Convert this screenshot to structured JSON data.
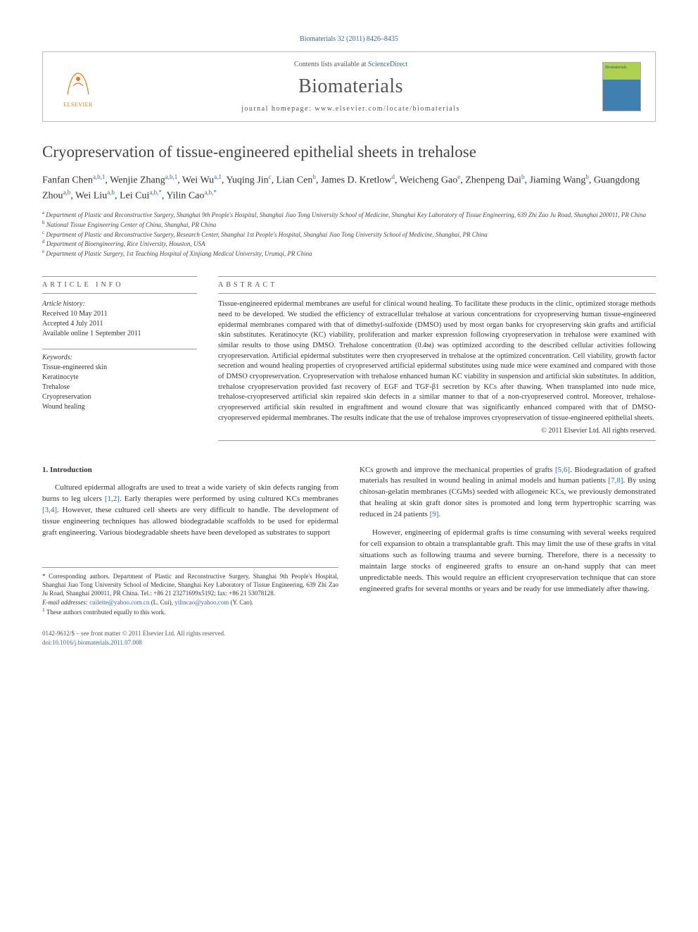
{
  "citation": "Biomaterials 32 (2011) 8426–8435",
  "header": {
    "contents_prefix": "Contents lists available at ",
    "contents_link": "ScienceDirect",
    "journal": "Biomaterials",
    "homepage_prefix": "journal homepage: ",
    "homepage": "www.elsevier.com/locate/biomaterials",
    "publisher": "ELSEVIER"
  },
  "title": "Cryopreservation of tissue-engineered epithelial sheets in trehalose",
  "authors_html": "Fanfan Chen<sup>a,b,1</sup>, Wenjie Zhang<sup>a,b,1</sup>, Wei Wu<sup>a,1</sup>, Yuqing Jin<sup>c</sup>, Lian Cen<sup>b</sup>, James D. Kretlow<sup>d</sup>, Weicheng Gao<sup>e</sup>, Zhenpeng Dai<sup>b</sup>, Jiaming Wang<sup>b</sup>, Guangdong Zhou<sup>a,b</sup>, Wei Liu<sup>a,b</sup>, Lei Cui<sup>a,b,*</sup>, Yilin Cao<sup>a,b,*</sup>",
  "affiliations": [
    {
      "sup": "a",
      "text": "Department of Plastic and Reconstructive Surgery, Shanghai 9th People's Hospital, Shanghai Jiao Tong University School of Medicine, Shanghai Key Laboratory of Tissue Engineering, 639 Zhi Zao Ju Road, Shanghai 200011, PR China"
    },
    {
      "sup": "b",
      "text": "National Tissue Engineering Center of China, Shanghai, PR China"
    },
    {
      "sup": "c",
      "text": "Department of Plastic and Reconstructive Surgery, Research Center, Shanghai 1st People's Hospital, Shanghai Jiao Tong University School of Medicine, Shanghai, PR China"
    },
    {
      "sup": "d",
      "text": "Department of Bioengineering, Rice University, Houston, USA"
    },
    {
      "sup": "e",
      "text": "Department of Plastic Surgery, 1st Teaching Hospital of Xinjiang Medical University, Urumqi, PR China"
    }
  ],
  "info": {
    "heading": "ARTICLE INFO",
    "history_label": "Article history:",
    "received": "Received 10 May 2011",
    "accepted": "Accepted 4 July 2011",
    "online": "Available online 1 September 2011",
    "keywords_label": "Keywords:",
    "keywords": [
      "Tissue-engineered skin",
      "Keratinocyte",
      "Trehalose",
      "Cryopreservation",
      "Wound healing"
    ]
  },
  "abstract": {
    "heading": "ABSTRACT",
    "text": "Tissue-engineered epidermal membranes are useful for clinical wound healing. To facilitate these products in the clinic, optimized storage methods need to be developed. We studied the efficiency of extracellular trehalose at various concentrations for cryopreserving human tissue-engineered epidermal membranes compared with that of dimethyl-sulfoxide (DMSO) used by most organ banks for cryopreserving skin grafts and artificial skin substitutes. Keratinocyte (KC) viability, proliferation and marker expression following cryopreservation in trehalose were examined with similar results to those using DMSO. Trehalose concentration (0.4ᴍ) was optimized according to the described cellular activities following cryopreservation. Artificial epidermal substitutes were then cryopreserved in trehalose at the optimized concentration. Cell viability, growth factor secretion and wound healing properties of cryopreserved artificial epidermal substitutes using nude mice were examined and compared with those of DMSO cryopreservation. Cryopreservation with trehalose enhanced human KC viability in suspension and artificial skin substitutes. In addition, trehalose cryopreservation provided fast recovery of EGF and TGF-β1 secretion by KCs after thawing. When transplanted into nude mice, trehalose-cryopreserved artificial skin repaired skin defects in a similar manner to that of a non-cryopreserved control. Moreover, trehalose-cryopreserved artificial skin resulted in engraftment and wound closure that was significantly enhanced compared with that of DMSO-cryopreserved epidermal membranes. The results indicate that the use of trehalose improves cryopreservation of tissue-engineered epithelial sheets.",
    "copyright": "© 2011 Elsevier Ltd. All rights reserved."
  },
  "intro": {
    "heading": "1. Introduction",
    "p1_a": "Cultured epidermal allografts are used to treat a wide variety of skin defects ranging from burns to leg ulcers ",
    "p1_ref1": "[1,2]",
    "p1_b": ". Early therapies were performed by using cultured KCs membranes ",
    "p1_ref2": "[3,4]",
    "p1_c": ". However, these cultured cell sheets are very difficult to handle. The development of tissue engineering techniques has allowed biodegradable scaffolds to be used for epidermal graft engineering. Various biodegradable sheets have been developed as substrates to support ",
    "p2_a": "KCs growth and improve the mechanical properties of grafts ",
    "p2_ref1": "[5,6]",
    "p2_b": ". Biodegradation of grafted materials has resulted in wound healing in animal models and human patients ",
    "p2_ref2": "[7,8]",
    "p2_c": ". By using chitosan-gelatin membranes (CGMs) seeded with allogeneic KCs, we previously demonstrated that healing at skin graft donor sites is promoted and long term hypertrophic scarring was reduced in 24 patients ",
    "p2_ref3": "[9]",
    "p2_d": ".",
    "p3": "However, engineering of epidermal grafts is time consuming with several weeks required for cell expansion to obtain a transplantable graft. This may limit the use of these grafts in vital situations such as following trauma and severe burning. Therefore, there is a necessity to maintain large stocks of engineered grafts to ensure an on-hand supply that can meet unpredictable needs. This would require an efficient cryopreservation technique that can store engineered grafts for several months or years and be ready for use immediately after thawing."
  },
  "footnotes": {
    "corresponding": "* Corresponding authors. Department of Plastic and Reconstructive Surgery, Shanghai 9th People's Hospital, Shanghai Jiao Tong University School of Medicine, Shanghai Key Laboratory of Tissue Engineering, 639 Zhi Zao Ju Road, Shanghai 200011, PR China. Tel.: +86 21 23271699x5192; fax: +86 21 53078128.",
    "email_label": "E-mail addresses: ",
    "email1": "cuileite@yahoo.com.cn",
    "email1_who": " (L. Cui), ",
    "email2": "yilincao@yahoo.com",
    "email2_who": " (Y. Cao).",
    "equal": "These authors contributed equally to this work.",
    "equal_sup": "1"
  },
  "footer": {
    "line1": "0142-9612/$ – see front matter © 2011 Elsevier Ltd. All rights reserved.",
    "doi_label": "doi:",
    "doi": "10.1016/j.biomaterials.2011.07.008"
  },
  "colors": {
    "link": "#3a6699",
    "accent": "#e67817"
  }
}
